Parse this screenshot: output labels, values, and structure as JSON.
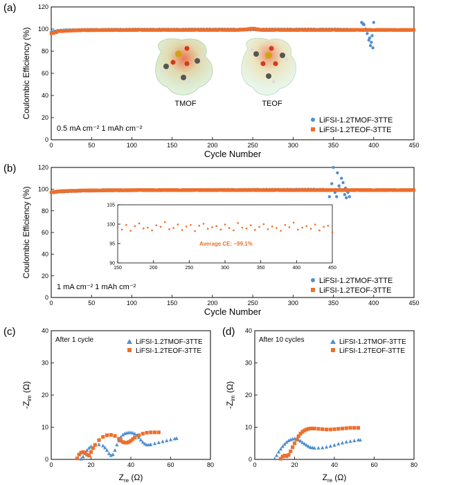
{
  "colors": {
    "tmof": "#4f8fcf",
    "teof": "#ec6f2d",
    "molecule_body": "#cfe6c4"
  },
  "panels": [
    {
      "id": "a",
      "letter": "(a)",
      "xlabel": "Cycle Number",
      "ylabel": "Coulombic Efficiency (%)",
      "xticks": [
        "0",
        "50",
        "100",
        "150",
        "200",
        "250",
        "300",
        "350",
        "400",
        "450"
      ],
      "yticks": [
        "0",
        "20",
        "40",
        "60",
        "80",
        "100",
        "120"
      ],
      "condition": "0.5 mA cm⁻²  1 mAh cm⁻²",
      "legend": [
        "LiFSI-1.2TMOF-3TTE",
        "LiFSI-1.2TEOF-3TTE"
      ],
      "molecule_labels": [
        "TMOF",
        "TEOF"
      ]
    },
    {
      "id": "b",
      "letter": "(b)",
      "xlabel": "Cycle Number",
      "ylabel": "Coulombic Efficiency (%)",
      "xticks": [
        "0",
        "50",
        "100",
        "150",
        "200",
        "250",
        "300",
        "350",
        "400",
        "450"
      ],
      "yticks": [
        "0",
        "20",
        "40",
        "60",
        "80",
        "100",
        "120"
      ],
      "condition": "1 mA cm⁻²  1 mAh cm⁻²",
      "legend": [
        "LiFSI-1.2TMOF-3TTE",
        "LiFSI-1.2TEOF-3TTE"
      ],
      "inset": {
        "xticks": [
          "150",
          "200",
          "250",
          "300",
          "350",
          "400",
          "450"
        ],
        "yticks": [
          "90",
          "95",
          "100",
          "105"
        ],
        "annotation": "Average CE: ~99.1%"
      }
    },
    {
      "id": "c",
      "letter": "(c)",
      "note": "After 1 cycle",
      "xlabel_main": "Z",
      "xlabel_sub": "re",
      "xlabel_unit": " (Ω)",
      "ylabel_pre": "-Z",
      "ylabel_sub": "im",
      "ylabel_unit": " (Ω)",
      "xticks": [
        "0",
        "20",
        "40",
        "60",
        "80"
      ],
      "yticks": [
        "0",
        "10",
        "20",
        "30",
        "40"
      ],
      "legend": [
        "LiFSI-1.2TMOF-3TTE",
        "LiFSI-1.2TEOF-3TTE"
      ]
    },
    {
      "id": "d",
      "letter": "(d)",
      "note": "After 10 cycles",
      "xlabel_main": "Z",
      "xlabel_sub": "re",
      "xlabel_unit": " (Ω)",
      "ylabel_pre": "-Z",
      "ylabel_sub": "im",
      "ylabel_unit": " (Ω)",
      "xticks": [
        "0",
        "20",
        "40",
        "60",
        "80"
      ],
      "yticks": [
        "0",
        "10",
        "20",
        "30",
        "40"
      ],
      "legend": [
        "LiFSI-1.2TMOF-3TTE",
        "LiFSI-1.2TEOF-3TTE"
      ]
    }
  ],
  "chart_data": [
    {
      "type": "scatter",
      "panel": "a",
      "xlabel": "Cycle Number",
      "ylabel": "Coulombic Efficiency (%)",
      "xlim": [
        0,
        450
      ],
      "ylim": [
        0,
        120
      ],
      "series": [
        {
          "name": "LiFSI-1.2TMOF-3TTE",
          "marker": "circle",
          "x": [
            0,
            5,
            10,
            20,
            30,
            40,
            50,
            60,
            70,
            80,
            90,
            100,
            110,
            120,
            130,
            140,
            150,
            160,
            170,
            180,
            190,
            200,
            210,
            220,
            230,
            240,
            250,
            260,
            270,
            280,
            290,
            300,
            310,
            320,
            330,
            340,
            350,
            360,
            370,
            380,
            385,
            388,
            390,
            392,
            394,
            395,
            396,
            397,
            398,
            399,
            400
          ],
          "y": [
            97,
            98,
            98.5,
            99,
            99,
            99.2,
            99.3,
            99.3,
            99.4,
            99.4,
            99.4,
            99.5,
            99.5,
            99.5,
            99.5,
            99.5,
            99.5,
            99.5,
            99.6,
            99.6,
            99.6,
            99.6,
            99.6,
            99.6,
            99.6,
            99.6,
            99.6,
            99.6,
            99.6,
            99.6,
            99.6,
            99.6,
            99.6,
            99.6,
            99.6,
            99.6,
            99.6,
            99.5,
            99.4,
            99.2,
            106,
            104,
            100,
            96,
            90,
            92,
            85,
            88,
            94,
            83,
            106
          ]
        },
        {
          "name": "LiFSI-1.2TEOF-3TTE",
          "marker": "square",
          "x": [
            0,
            5,
            10,
            20,
            30,
            40,
            50,
            60,
            70,
            80,
            90,
            100,
            110,
            120,
            130,
            140,
            150,
            160,
            170,
            180,
            190,
            200,
            210,
            220,
            230,
            240,
            250,
            260,
            270,
            280,
            290,
            300,
            310,
            320,
            330,
            340,
            350,
            360,
            370,
            380,
            390,
            400,
            410,
            420,
            430,
            440,
            450
          ],
          "y": [
            96,
            97,
            98,
            98.5,
            98.8,
            99,
            99,
            99.1,
            99.1,
            99.1,
            99.1,
            99.2,
            99.2,
            99.2,
            99.2,
            99.2,
            99.2,
            99.2,
            99.2,
            99.2,
            99.2,
            99.2,
            99.2,
            99.2,
            99.2,
            99.5,
            100.5,
            99.2,
            99.2,
            99.2,
            99.2,
            99.2,
            99.2,
            99.2,
            99.2,
            99.2,
            99.2,
            99.2,
            99.2,
            99.2,
            99.2,
            99.2,
            99.2,
            99.2,
            99.2,
            99.2,
            99.2
          ]
        }
      ]
    },
    {
      "type": "scatter",
      "panel": "b",
      "xlabel": "Cycle Number",
      "ylabel": "Coulombic Efficiency (%)",
      "xlim": [
        0,
        450
      ],
      "ylim": [
        0,
        120
      ],
      "series": [
        {
          "name": "LiFSI-1.2TMOF-3TTE",
          "marker": "circle",
          "x": [
            0,
            10,
            20,
            30,
            40,
            50,
            60,
            70,
            80,
            90,
            100,
            110,
            120,
            130,
            140,
            150,
            160,
            170,
            180,
            190,
            200,
            210,
            220,
            230,
            240,
            250,
            260,
            270,
            280,
            290,
            300,
            310,
            320,
            330,
            340,
            345,
            348,
            350,
            352,
            354,
            355,
            357,
            358,
            360,
            362,
            364,
            365,
            366,
            368,
            370
          ],
          "y": [
            97,
            97.5,
            98,
            98.2,
            98.5,
            98.5,
            98.7,
            98.7,
            98.8,
            98.8,
            98.9,
            99,
            99,
            99,
            99,
            99.1,
            99.1,
            99.1,
            99.2,
            99.2,
            99.2,
            99.3,
            99.3,
            99.3,
            99.3,
            99.4,
            99.4,
            99.4,
            99.4,
            99.4,
            99.5,
            99.5,
            99.5,
            99.5,
            99.4,
            93,
            105,
            120,
            97,
            93,
            115,
            103,
            100,
            110,
            106,
            95,
            101,
            92,
            97,
            93
          ]
        },
        {
          "name": "LiFSI-1.2TEOF-3TTE",
          "marker": "square",
          "x": [
            0,
            10,
            20,
            30,
            40,
            50,
            60,
            70,
            80,
            90,
            100,
            110,
            120,
            130,
            140,
            150,
            160,
            170,
            180,
            190,
            200,
            210,
            220,
            230,
            240,
            250,
            260,
            270,
            280,
            290,
            300,
            310,
            320,
            330,
            340,
            350,
            360,
            370,
            380,
            390,
            400,
            410,
            420,
            430,
            440,
            450
          ],
          "y": [
            97,
            98,
            98.3,
            98.5,
            98.7,
            98.8,
            98.9,
            99,
            99,
            99,
            99,
            99.1,
            99.1,
            99.1,
            99.1,
            99.1,
            99.1,
            99.1,
            99.1,
            99.1,
            99.1,
            99.1,
            99.1,
            99.1,
            99.1,
            99.1,
            99.1,
            99.1,
            99.1,
            99.1,
            99.1,
            99.1,
            99.1,
            99.1,
            99.1,
            99.1,
            99.1,
            99.1,
            99.1,
            99.1,
            99.1,
            99.1,
            99.1,
            99.1,
            99.1,
            99.1
          ]
        }
      ]
    },
    {
      "type": "scatter",
      "panel": "b-inset",
      "xlim": [
        150,
        450
      ],
      "ylim": [
        90,
        105
      ],
      "annotation": "Average CE: ~99.1%",
      "series": [
        {
          "name": "LiFSI-1.2TEOF-3TTE",
          "marker": "square",
          "x": [
            150,
            156,
            162,
            168,
            174,
            180,
            186,
            192,
            198,
            204,
            210,
            216,
            222,
            228,
            234,
            240,
            246,
            252,
            258,
            264,
            270,
            276,
            282,
            288,
            294,
            300,
            306,
            312,
            318,
            324,
            330,
            336,
            342,
            348,
            354,
            360,
            366,
            372,
            378,
            384,
            390,
            396,
            402,
            408,
            414,
            420,
            426,
            432,
            438,
            444,
            450
          ],
          "y": [
            99.2,
            98.6,
            99.8,
            98.3,
            99.5,
            100.2,
            98.9,
            99.1,
            98.4,
            99.7,
            99.3,
            100.5,
            98.7,
            99.0,
            99.9,
            98.5,
            99.4,
            99.8,
            98.2,
            99.6,
            100.1,
            98.8,
            99.2,
            99.5,
            98.6,
            99.9,
            99.0,
            98.4,
            100.3,
            99.1,
            98.9,
            99.7,
            98.5,
            99.3,
            100.0,
            98.7,
            99.4,
            99.0,
            98.3,
            99.8,
            99.2,
            100.4,
            98.6,
            99.1,
            99.5,
            98.8,
            99.9,
            98.4,
            99.3,
            99.6,
            97.8
          ]
        }
      ]
    },
    {
      "type": "scatter",
      "panel": "c",
      "xlabel": "Zre (Ω)",
      "ylabel": "-Zim (Ω)",
      "xlim": [
        0,
        80
      ],
      "ylim": [
        0,
        40
      ],
      "series": [
        {
          "name": "LiFSI-1.2TMOF-3TTE",
          "marker": "triangle",
          "x": [
            15,
            16,
            17,
            18,
            19,
            20,
            22,
            24,
            26,
            27,
            28,
            29,
            30,
            31,
            32,
            33,
            34,
            35,
            36,
            37,
            38,
            39,
            40,
            41,
            42,
            43,
            44,
            45,
            46,
            47,
            48,
            49,
            50,
            52,
            54,
            56,
            58,
            60,
            62,
            63
          ],
          "y": [
            0.1,
            0.8,
            1.8,
            2.8,
            3.5,
            4.0,
            4.5,
            4.6,
            4.2,
            3.6,
            2.8,
            1.8,
            1.2,
            1.5,
            2.8,
            4.5,
            5.8,
            6.9,
            7.6,
            8.0,
            8.2,
            8.3,
            8.3,
            8.2,
            7.9,
            7.4,
            6.8,
            6.0,
            5.3,
            4.8,
            4.5,
            4.5,
            4.6,
            4.9,
            5.2,
            5.5,
            5.8,
            6.1,
            6.4,
            6.5
          ]
        },
        {
          "name": "LiFSI-1.2TEOF-3TTE",
          "marker": "square",
          "x": [
            13,
            14,
            15,
            16,
            17,
            18,
            19,
            20,
            21,
            22,
            24,
            26,
            28,
            30,
            32,
            34,
            35,
            36,
            37,
            38,
            39,
            40,
            41,
            42,
            44,
            46,
            48,
            50,
            52,
            54
          ],
          "y": [
            0.3,
            1.5,
            2.1,
            2.3,
            2.1,
            1.5,
            1.2,
            2.3,
            3.5,
            4.5,
            6.0,
            7.0,
            7.5,
            7.6,
            7.3,
            6.4,
            5.8,
            5.4,
            5.2,
            5.2,
            5.4,
            5.8,
            6.3,
            6.8,
            7.5,
            8.0,
            8.3,
            8.4,
            8.4,
            8.4
          ]
        }
      ]
    },
    {
      "type": "scatter",
      "panel": "d",
      "xlabel": "Zre (Ω)",
      "ylabel": "-Zim (Ω)",
      "xlim": [
        0,
        80
      ],
      "ylim": [
        0,
        40
      ],
      "series": [
        {
          "name": "LiFSI-1.2TMOF-3TTE",
          "marker": "triangle",
          "x": [
            10,
            11,
            12,
            13,
            14,
            15,
            16,
            17,
            18,
            19,
            20,
            21,
            22,
            23,
            24,
            25,
            26,
            27,
            28,
            29,
            30,
            32,
            34,
            36,
            38,
            40,
            42,
            44,
            46,
            48,
            50,
            52,
            53
          ],
          "y": [
            0.2,
            1.2,
            2.3,
            3.2,
            4.0,
            4.7,
            5.3,
            5.8,
            6.1,
            6.3,
            6.4,
            6.3,
            6.0,
            5.7,
            5.2,
            4.8,
            4.4,
            4.0,
            3.7,
            3.6,
            3.5,
            3.5,
            3.6,
            3.8,
            4.1,
            4.4,
            4.8,
            5.1,
            5.4,
            5.6,
            5.8,
            6.0,
            6.0
          ]
        },
        {
          "name": "LiFSI-1.2TEOF-3TTE",
          "marker": "square",
          "x": [
            13,
            14,
            15,
            16,
            17,
            18,
            19,
            20,
            21,
            22,
            23,
            24,
            25,
            26,
            27,
            28,
            29,
            30,
            32,
            34,
            36,
            38,
            40,
            42,
            44,
            46,
            48,
            50,
            52
          ],
          "y": [
            0.2,
            0.9,
            1.2,
            1.0,
            1.4,
            2.5,
            3.8,
            5.0,
            6.2,
            7.2,
            8.0,
            8.6,
            9.0,
            9.3,
            9.5,
            9.6,
            9.6,
            9.6,
            9.5,
            9.4,
            9.3,
            9.3,
            9.4,
            9.5,
            9.6,
            9.7,
            9.8,
            9.8,
            9.8
          ]
        }
      ]
    }
  ]
}
